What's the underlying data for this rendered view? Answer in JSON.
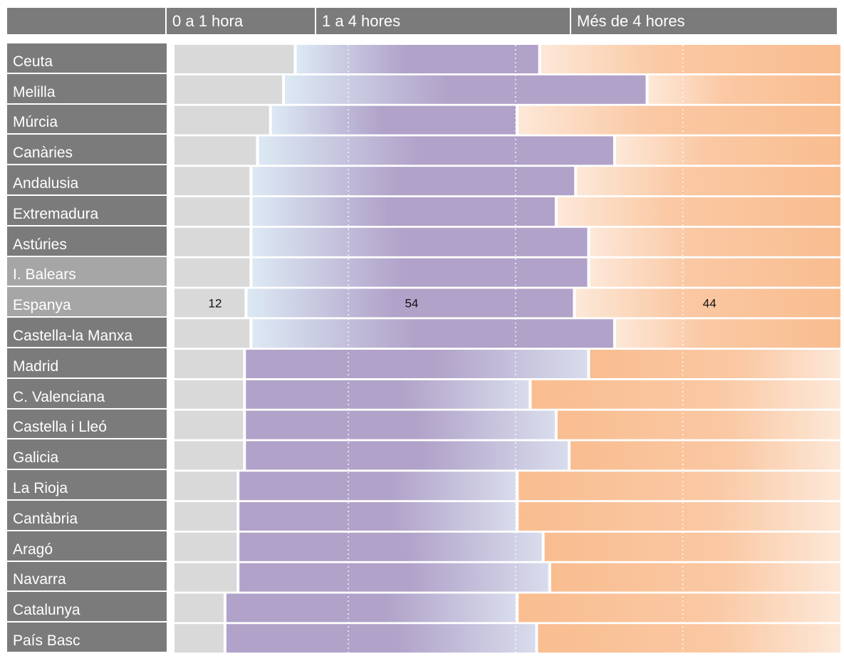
{
  "header": {
    "col0_label": "0 a 1 hora",
    "col1_label": "1 a 4 hores",
    "col2_label": "Més de 4 hores"
  },
  "colors": {
    "header_bg": "#7b7b7b",
    "highlight_label_bg": "#a6a6a6",
    "segment_0_1h": "#d9d9d9",
    "segment_1_4h": "#b1a2c9",
    "segment_1_4h_light": "#dce9f4",
    "segment_more_4h": "#fac095",
    "segment_more_4h_light": "#fde8d8",
    "gridline": "#ffffff"
  },
  "chart_data": {
    "type": "bar",
    "orientation": "horizontal",
    "stacked": true,
    "categories": [
      "Ceuta",
      "Melilla",
      "Múrcia",
      "Canàries",
      "Andalusia",
      "Extremadura",
      "Astúries",
      "I. Balears",
      "Espanya",
      "Castella-la Manxa",
      "Madrid",
      "C. Valenciana",
      "Castella i Lleó",
      "Galicia",
      "La Rioja",
      "Cantàbria",
      "Aragó",
      "Navarra",
      "Catalunya",
      "País Basc"
    ],
    "highlighted_categories": [
      "I. Balears",
      "Espanya"
    ],
    "series": [
      {
        "name": "0 a 1 hora",
        "values": [
          19,
          17,
          15,
          13,
          12,
          12,
          12,
          12,
          12,
          12,
          11,
          11,
          11,
          11,
          10,
          10,
          10,
          10,
          8,
          8
        ]
      },
      {
        "name": "1 a 4 hores",
        "values": [
          38,
          56,
          38,
          55,
          50,
          47,
          52,
          52,
          54,
          56,
          53,
          44,
          48,
          50,
          43,
          43,
          47,
          48,
          45,
          48
        ]
      },
      {
        "name": "Més de 4 hores",
        "values": [
          47,
          30,
          50,
          35,
          41,
          44,
          39,
          39,
          44,
          35,
          39,
          48,
          44,
          42,
          50,
          50,
          46,
          45,
          50,
          47
        ]
      }
    ],
    "data_labels": [
      {
        "category": "Espanya",
        "series": "0 a 1 hora",
        "text": "12"
      },
      {
        "category": "Espanya",
        "series": "1 a 4 hores",
        "text": "54"
      },
      {
        "category": "Espanya",
        "series": "Més de 4 hores",
        "text": "44"
      }
    ],
    "grid": true
  }
}
